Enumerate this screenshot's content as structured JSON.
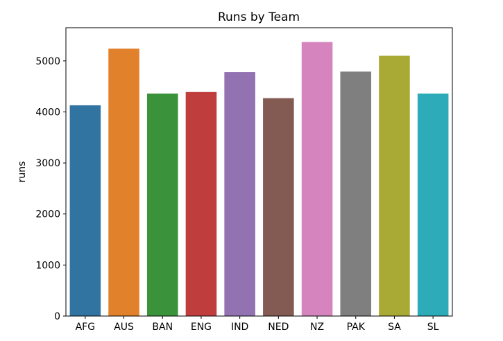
{
  "chart_data": {
    "type": "bar",
    "title": "Runs by Team",
    "xlabel": "",
    "ylabel": "runs",
    "categories": [
      "AFG",
      "AUS",
      "BAN",
      "ENG",
      "IND",
      "NED",
      "NZ",
      "PAK",
      "SA",
      "SL"
    ],
    "values": [
      4130,
      5240,
      4360,
      4390,
      4780,
      4270,
      5370,
      4790,
      5100,
      4360
    ],
    "colors": [
      "#3274a1",
      "#e1812c",
      "#3a923a",
      "#c03d3e",
      "#9372b2",
      "#845b53",
      "#d684bd",
      "#7f7f7f",
      "#a9aa35",
      "#2eabb8"
    ],
    "ylim": [
      0,
      5650
    ],
    "yticks": [
      0,
      1000,
      2000,
      3000,
      4000,
      5000
    ],
    "grid": false,
    "legend": "none"
  }
}
